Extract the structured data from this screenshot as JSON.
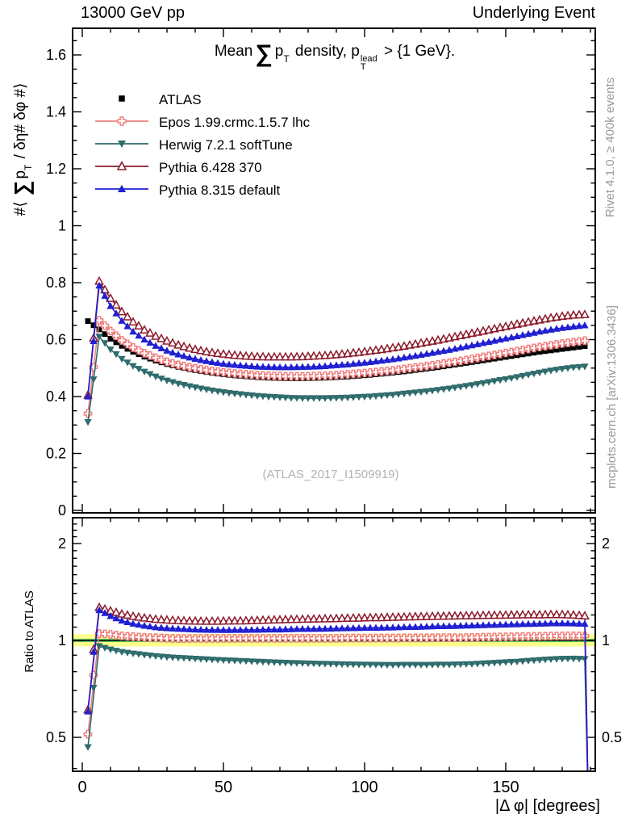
{
  "header": {
    "left": "13000 GeV pp",
    "right": "Underlying Event"
  },
  "title": {
    "word1": "Mean",
    "sum": "∑",
    "p1": "p",
    "sub1": "T",
    "word2": " density, ",
    "p2": "p",
    "sup2": "lead",
    "sub2": "T",
    "word3": " > {1 GeV}."
  },
  "axes": {
    "ylabel_main": {
      "pre": "#⟨ ",
      "sum": "∑",
      "p": "p",
      "sub": "T",
      "post": " / δη# δφ #⟩"
    },
    "ylabel_ratio": "Ratio to ATLAS",
    "xlabel": "|Δ φ| [degrees]"
  },
  "side_notes": {
    "top": "Rivet 4.1.0, ≥ 400k events",
    "bottom": "mcplots.cern.ch [arXiv:1306.3436]"
  },
  "watermark": {
    "text": "(ATLAS_2017_I1509919)"
  },
  "chart_data": [
    {
      "type": "line",
      "panel": "main",
      "title": "Mean Sum pT density, pT lead > 1 GeV",
      "xlabel": "|Δ φ| [degrees]",
      "ylabel": "#⟨ ∑ p_T / δη# δφ #⟩",
      "xlim": [
        -3.4,
        181.7
      ],
      "ylim": [
        0,
        1.694
      ],
      "yticks_major_step": 0.2,
      "yticks_minor_step": 0.05,
      "xticks_labeled": [
        0,
        50,
        100,
        150
      ],
      "xtick_minor_step": 10,
      "grid": false,
      "legend_position": "top-left",
      "x": [
        2,
        6,
        10,
        14,
        18,
        22,
        26,
        30,
        34,
        38,
        42,
        46,
        50,
        54,
        58,
        62,
        66,
        70,
        74,
        78,
        82,
        86,
        90,
        94,
        98,
        102,
        106,
        110,
        114,
        118,
        122,
        126,
        130,
        134,
        138,
        142,
        146,
        150,
        154,
        158,
        162,
        166,
        170,
        174,
        178
      ],
      "series": [
        {
          "name": "ATLAS",
          "marker": "square-filled",
          "color": "#000000",
          "line": false,
          "values": [
            0.665,
            0.636,
            0.603,
            0.578,
            0.557,
            0.54,
            0.526,
            0.514,
            0.504,
            0.496,
            0.489,
            0.483,
            0.478,
            0.474,
            0.471,
            0.468,
            0.466,
            0.465,
            0.464,
            0.464,
            0.465,
            0.466,
            0.468,
            0.47,
            0.473,
            0.476,
            0.48,
            0.484,
            0.488,
            0.493,
            0.498,
            0.503,
            0.509,
            0.515,
            0.521,
            0.527,
            0.533,
            0.539,
            0.545,
            0.551,
            0.557,
            0.562,
            0.567,
            0.572,
            0.577
          ]
        },
        {
          "name": "Epos 1.99.crmc.1.5.7 lhc",
          "marker": "cross-open",
          "color": "#f08080",
          "line": true,
          "values": [
            0.34,
            0.668,
            0.63,
            0.597,
            0.572,
            0.552,
            0.536,
            0.522,
            0.511,
            0.503,
            0.496,
            0.49,
            0.485,
            0.481,
            0.478,
            0.475,
            0.473,
            0.472,
            0.471,
            0.471,
            0.472,
            0.473,
            0.475,
            0.478,
            0.481,
            0.484,
            0.488,
            0.492,
            0.497,
            0.502,
            0.507,
            0.513,
            0.519,
            0.525,
            0.532,
            0.539,
            0.546,
            0.553,
            0.56,
            0.567,
            0.574,
            0.58,
            0.586,
            0.591,
            0.596
          ]
        },
        {
          "name": "Herwig 7.2.1 softTune",
          "marker": "triangle-down-filled",
          "color": "#2e6b6b",
          "line": true,
          "values": [
            0.31,
            0.61,
            0.565,
            0.532,
            0.507,
            0.487,
            0.47,
            0.456,
            0.445,
            0.436,
            0.428,
            0.421,
            0.415,
            0.41,
            0.406,
            0.402,
            0.399,
            0.397,
            0.395,
            0.394,
            0.394,
            0.394,
            0.395,
            0.396,
            0.398,
            0.4,
            0.403,
            0.406,
            0.41,
            0.414,
            0.418,
            0.423,
            0.428,
            0.434,
            0.44,
            0.447,
            0.454,
            0.461,
            0.468,
            0.476,
            0.484,
            0.491,
            0.497,
            0.502,
            0.505
          ]
        },
        {
          "name": "Pythia 6.428 370",
          "marker": "triangle-up-open",
          "color": "#8b1a2b",
          "line": true,
          "values": [
            0.405,
            0.805,
            0.745,
            0.698,
            0.662,
            0.634,
            0.612,
            0.595,
            0.581,
            0.57,
            0.561,
            0.554,
            0.549,
            0.545,
            0.542,
            0.54,
            0.539,
            0.539,
            0.539,
            0.54,
            0.542,
            0.544,
            0.547,
            0.551,
            0.555,
            0.56,
            0.565,
            0.571,
            0.577,
            0.584,
            0.591,
            0.598,
            0.606,
            0.614,
            0.622,
            0.63,
            0.638,
            0.646,
            0.654,
            0.662,
            0.669,
            0.676,
            0.682,
            0.686,
            0.688
          ]
        },
        {
          "name": "Pythia 8.315 default",
          "marker": "triangle-up-filled",
          "color": "#1f1fd1",
          "line": true,
          "values": [
            0.4,
            0.79,
            0.718,
            0.666,
            0.628,
            0.6,
            0.578,
            0.561,
            0.548,
            0.537,
            0.528,
            0.521,
            0.515,
            0.511,
            0.508,
            0.505,
            0.504,
            0.503,
            0.503,
            0.504,
            0.505,
            0.507,
            0.51,
            0.513,
            0.517,
            0.521,
            0.526,
            0.531,
            0.537,
            0.543,
            0.55,
            0.557,
            0.564,
            0.572,
            0.58,
            0.588,
            0.596,
            0.604,
            0.612,
            0.62,
            0.628,
            0.635,
            0.641,
            0.646,
            0.65
          ]
        }
      ]
    },
    {
      "type": "line",
      "panel": "ratio",
      "ylabel": "Ratio to ATLAS",
      "yscale": "log",
      "ylim": [
        0.392,
        2.407
      ],
      "yticks_labeled": [
        0.5,
        1,
        2
      ],
      "ytick_minor_step": 0.1,
      "ratio_definition": "each MC series of panel 0 divided by ATLAS values",
      "reference_line": 1,
      "band": {
        "outer": [
          0.958,
          1.045
        ],
        "inner": [
          0.988,
          1.012
        ],
        "outer_color": "#ffff8c",
        "inner_color": "#5ec85e",
        "line_color": "#000000"
      },
      "last_bin_drop_x": 179.4
    }
  ]
}
